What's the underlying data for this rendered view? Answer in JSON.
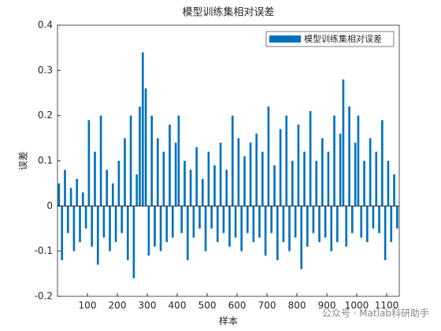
{
  "chart_data": {
    "type": "bar",
    "title": "模型训练集相对误差",
    "x_label": "样本",
    "y_label": "误差",
    "x": [
      5,
      15,
      25,
      35,
      45,
      55,
      65,
      75,
      85,
      95,
      105,
      115,
      125,
      135,
      145,
      155,
      165,
      175,
      185,
      195,
      205,
      215,
      225,
      235,
      245,
      255,
      265,
      275,
      285,
      295,
      305,
      315,
      325,
      335,
      345,
      355,
      365,
      375,
      385,
      395,
      405,
      415,
      425,
      435,
      445,
      455,
      465,
      475,
      485,
      495,
      505,
      515,
      525,
      535,
      545,
      555,
      565,
      575,
      585,
      595,
      605,
      615,
      625,
      635,
      645,
      655,
      665,
      675,
      685,
      695,
      705,
      715,
      725,
      735,
      745,
      755,
      765,
      775,
      785,
      795,
      805,
      815,
      825,
      835,
      845,
      855,
      865,
      875,
      885,
      895,
      905,
      915,
      925,
      935,
      945,
      955,
      965,
      975,
      985,
      995,
      1005,
      1015,
      1025,
      1035,
      1045,
      1055,
      1065,
      1075,
      1085,
      1095,
      1105,
      1115,
      1125,
      1135
    ],
    "series": [
      {
        "name": "模型训练集相对误差",
        "color": "#0072bd",
        "values": [
          0.05,
          -0.12,
          0.08,
          -0.06,
          0.04,
          -0.1,
          0.06,
          -0.08,
          0.03,
          -0.05,
          0.19,
          -0.09,
          0.12,
          -0.13,
          0.2,
          -0.07,
          0.08,
          -0.1,
          0.05,
          -0.08,
          0.1,
          -0.06,
          0.15,
          -0.12,
          0.2,
          -0.16,
          0.07,
          0.22,
          0.34,
          0.26,
          -0.11,
          0.2,
          -0.09,
          0.15,
          -0.1,
          0.12,
          -0.08,
          0.18,
          -0.07,
          0.14,
          0.2,
          -0.06,
          0.1,
          -0.12,
          0.08,
          -0.07,
          0.13,
          -0.05,
          0.06,
          -0.1,
          0.12,
          -0.05,
          0.09,
          -0.08,
          0.14,
          -0.06,
          0.08,
          -0.09,
          0.2,
          -0.07,
          0.15,
          -0.1,
          0.11,
          -0.06,
          0.14,
          -0.08,
          0.16,
          -0.07,
          0.12,
          -0.11,
          0.22,
          -0.06,
          0.09,
          -0.12,
          0.17,
          -0.08,
          0.2,
          -0.1,
          0.1,
          -0.07,
          0.18,
          -0.14,
          0.12,
          -0.09,
          0.21,
          -0.06,
          0.1,
          -0.08,
          0.15,
          -0.07,
          0.12,
          -0.1,
          0.2,
          -0.08,
          0.16,
          0.28,
          -0.09,
          0.22,
          -0.06,
          0.14,
          0.2,
          -0.07,
          0.1,
          -0.08,
          0.15,
          -0.05,
          0.12,
          -0.06,
          0.19,
          -0.12,
          0.1,
          -0.08,
          0.07,
          -0.05
        ]
      }
    ],
    "xlim": [
      0,
      1142
    ],
    "xticks": [
      100,
      200,
      300,
      400,
      500,
      600,
      700,
      800,
      900,
      1000,
      1100
    ],
    "ylim": [
      -0.2,
      0.4
    ],
    "yticks": [
      -0.2,
      -0.1,
      0,
      0.1,
      0.2,
      0.3,
      0.4
    ],
    "legend": "top-right",
    "watermark": "公众号 · Matlab科研助手"
  }
}
